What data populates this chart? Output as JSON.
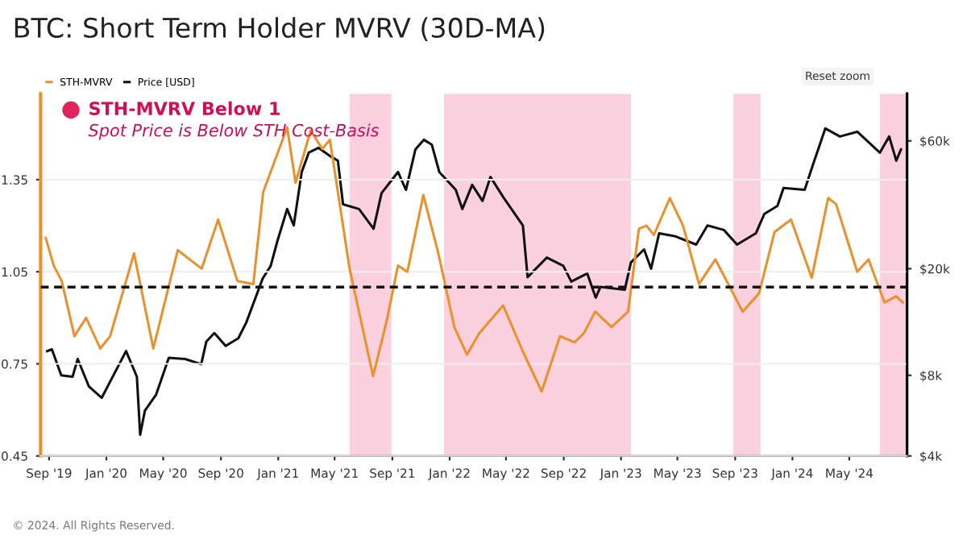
{
  "chart_data": {
    "type": "line",
    "title": "BTC: Short Term Holder MVRV (30D-MA)",
    "annotations": [
      "STH-MVRV Below 1",
      "Spot Price is Below STH Cost-Basis",
      "Reset zoom",
      "© 2024. All Rights Reserved."
    ],
    "legend": "top left",
    "grid": "y",
    "xlim": [
      "2019-08-14",
      "2024-09-01"
    ],
    "xticks": [
      {
        "value": "2019-09-01",
        "label": "Sep '19"
      },
      {
        "value": "2020-01-01",
        "label": "Jan '20"
      },
      {
        "value": "2020-05-01",
        "label": "May '20"
      },
      {
        "value": "2020-09-01",
        "label": "Sep '20"
      },
      {
        "value": "2021-01-01",
        "label": "Jan '21"
      },
      {
        "value": "2021-05-01",
        "label": "May '21"
      },
      {
        "value": "2021-09-01",
        "label": "Sep '21"
      },
      {
        "value": "2022-01-01",
        "label": "Jan '22"
      },
      {
        "value": "2022-05-01",
        "label": "May '22"
      },
      {
        "value": "2022-09-01",
        "label": "Sep '22"
      },
      {
        "value": "2023-01-01",
        "label": "Jan '23"
      },
      {
        "value": "2023-05-01",
        "label": "May '23"
      },
      {
        "value": "2023-09-01",
        "label": "Sep '23"
      },
      {
        "value": "2024-01-01",
        "label": "Jan '24"
      },
      {
        "value": "2024-05-01",
        "label": "May '24"
      }
    ],
    "ylim": [
      0.45,
      1.63
    ],
    "yticks": [
      0.45,
      0.75,
      1.05,
      1.35
    ],
    "log": "y2",
    "y2lim": [
      4000,
      90000
    ],
    "y2ticks": [
      {
        "value": 4000,
        "label": "$4k"
      },
      {
        "value": 8000,
        "label": "$8k"
      },
      {
        "value": 20000,
        "label": "$20k"
      },
      {
        "value": 60000,
        "label": "$60k"
      }
    ],
    "ref_lines": [
      {
        "axis": "y",
        "value": 1.0,
        "label": null,
        "color": "#111111",
        "line_style": "dashed"
      }
    ],
    "bands": [
      {
        "axis": "x",
        "from": "2021-06-02",
        "to": "2021-08-30",
        "label": null,
        "color": "#fbd0df"
      },
      {
        "axis": "x",
        "from": "2021-12-20",
        "to": "2023-01-22",
        "label": null,
        "color": "#fbd0df"
      },
      {
        "axis": "x",
        "from": "2023-08-28",
        "to": "2023-10-25",
        "label": null,
        "color": "#fbd0df"
      },
      {
        "axis": "x",
        "from": "2024-07-05",
        "to": "2024-09-01",
        "label": null,
        "color": "#fbd0df"
      }
    ],
    "series": [
      {
        "name": "STH-MVRV",
        "color": "#e8912d",
        "x": [
          "2019-08-25",
          "2019-09-11",
          "2019-09-28",
          "2019-10-25",
          "2019-11-19",
          "2019-12-19",
          "2020-01-09",
          "2020-02-29",
          "2020-04-10",
          "2020-06-01",
          "2020-07-22",
          "2020-08-26",
          "2020-10-06",
          "2020-11-09",
          "2020-11-30",
          "2021-01-20",
          "2021-02-07",
          "2021-03-11",
          "2021-04-05",
          "2021-04-21",
          "2021-06-02",
          "2021-07-22",
          "2021-08-20",
          "2021-09-13",
          "2021-10-03",
          "2021-11-06",
          "2021-12-08",
          "2022-01-11",
          "2022-02-07",
          "2022-03-05",
          "2022-04-25",
          "2022-06-06",
          "2022-07-16",
          "2022-08-24",
          "2022-09-24",
          "2022-10-14",
          "2022-11-07",
          "2022-12-12",
          "2023-01-16",
          "2023-02-08",
          "2023-02-24",
          "2023-03-12",
          "2023-04-15",
          "2023-05-13",
          "2023-06-16",
          "2023-07-21",
          "2023-08-24",
          "2023-09-17",
          "2023-10-22",
          "2023-11-24",
          "2023-12-29",
          "2024-02-11",
          "2024-03-17",
          "2024-04-03",
          "2024-05-18",
          "2024-06-11",
          "2024-07-15",
          "2024-08-09",
          "2024-08-23"
        ],
        "values": [
          1.16,
          1.07,
          1.02,
          0.84,
          0.9,
          0.8,
          0.84,
          1.11,
          0.8,
          1.12,
          1.06,
          1.22,
          1.02,
          1.01,
          1.31,
          1.52,
          1.34,
          1.51,
          1.45,
          1.48,
          1.06,
          0.71,
          0.89,
          1.07,
          1.05,
          1.3,
          1.11,
          0.87,
          0.78,
          0.85,
          0.94,
          0.79,
          0.66,
          0.84,
          0.82,
          0.85,
          0.92,
          0.87,
          0.92,
          1.19,
          1.2,
          1.17,
          1.29,
          1.2,
          1.01,
          1.09,
          0.99,
          0.92,
          0.98,
          1.18,
          1.22,
          1.03,
          1.29,
          1.27,
          1.05,
          1.09,
          0.95,
          0.97,
          0.95
        ]
      },
      {
        "name": "Price [USD]",
        "color": "#111111",
        "axis": "y2",
        "x": [
          "2019-08-28",
          "2019-09-07",
          "2019-09-27",
          "2019-10-21",
          "2019-11-01",
          "2019-11-25",
          "2019-12-22",
          "2020-02-12",
          "2020-03-06",
          "2020-03-13",
          "2020-03-23",
          "2020-04-16",
          "2020-05-13",
          "2020-06-17",
          "2020-07-21",
          "2020-08-01",
          "2020-08-18",
          "2020-09-11",
          "2020-10-08",
          "2020-10-25",
          "2020-11-29",
          "2020-12-16",
          "2020-12-30",
          "2021-01-20",
          "2021-02-03",
          "2021-02-20",
          "2021-03-07",
          "2021-03-28",
          "2021-04-21",
          "2021-05-08",
          "2021-05-19",
          "2021-06-22",
          "2021-07-23",
          "2021-08-09",
          "2021-09-13",
          "2021-09-30",
          "2021-10-20",
          "2021-11-07",
          "2021-11-24",
          "2021-12-10",
          "2022-01-14",
          "2022-01-28",
          "2022-02-18",
          "2022-03-12",
          "2022-03-29",
          "2022-04-26",
          "2022-06-06",
          "2022-06-16",
          "2022-07-27",
          "2022-08-31",
          "2022-09-17",
          "2022-10-21",
          "2022-11-08",
          "2022-11-18",
          "2023-01-09",
          "2023-01-22",
          "2023-02-19",
          "2023-03-06",
          "2023-03-23",
          "2023-04-27",
          "2023-06-10",
          "2023-07-04",
          "2023-08-08",
          "2023-09-05",
          "2023-10-15",
          "2023-11-02",
          "2023-11-30",
          "2023-12-13",
          "2024-01-27",
          "2024-02-13",
          "2024-03-11",
          "2024-04-11",
          "2024-05-18",
          "2024-07-05",
          "2024-07-25",
          "2024-08-09",
          "2024-08-19"
        ],
        "values": [
          9850,
          10000,
          8000,
          7900,
          9200,
          7260,
          6590,
          9850,
          7900,
          4800,
          5900,
          6780,
          9300,
          9200,
          8800,
          10700,
          11500,
          10300,
          11000,
          12600,
          18400,
          20500,
          25300,
          33400,
          29000,
          45900,
          54200,
          56500,
          52700,
          50600,
          34800,
          33400,
          28200,
          38300,
          45900,
          39400,
          55700,
          60600,
          58100,
          45900,
          39400,
          33400,
          41100,
          35800,
          44000,
          36800,
          29000,
          18600,
          22000,
          20500,
          17900,
          19200,
          15600,
          17100,
          16700,
          21100,
          23600,
          20000,
          27100,
          26400,
          24600,
          29000,
          27900,
          24600,
          27100,
          32000,
          34300,
          40000,
          39400,
          48500,
          66800,
          62300,
          64900,
          54200,
          62300,
          50600,
          55700
        ]
      }
    ]
  }
}
